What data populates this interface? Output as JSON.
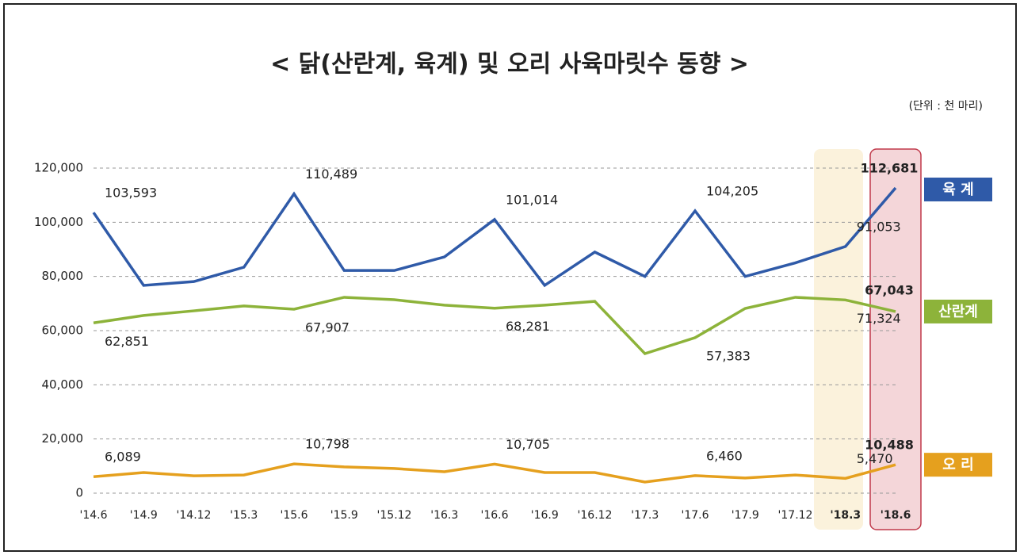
{
  "chart_data": {
    "type": "line",
    "title": "< 닭(산란계, 육계) 및 오리 사육마릿수 동향 >",
    "subtitle": "(단위 : 천 마리)",
    "categories": [
      "'14.6",
      "'14.9",
      "'14.12",
      "'15.3",
      "'15.6",
      "'15.9",
      "'15.12",
      "'16.3",
      "'16.6",
      "'16.9",
      "'16.12",
      "'17.3",
      "'17.6",
      "'17.9",
      "'17.12",
      "'18.3",
      "'18.6"
    ],
    "ylim": [
      0,
      120000
    ],
    "yticks": [
      0,
      {
        "value": 20000,
        "label": "20,000"
      },
      {
        "value": 40000,
        "label": "40,000"
      },
      {
        "value": 60000,
        "label": "60,000"
      },
      {
        "value": 80000,
        "label": "80,000"
      },
      {
        "value": 100000,
        "label": "100,000"
      },
      {
        "value": 120000,
        "label": "120,000"
      }
    ],
    "grid": true,
    "series": [
      {
        "name": "육 계",
        "color": "#2f5aa8",
        "values": [
          103593,
          76700,
          78100,
          83400,
          110489,
          82200,
          82200,
          87200,
          101014,
          76700,
          89000,
          80000,
          104205,
          80000,
          85000,
          91053,
          112681
        ],
        "value_labels": [
          "103,593",
          null,
          null,
          null,
          "110,489",
          null,
          null,
          null,
          "101,014",
          null,
          null,
          null,
          "104,205",
          null,
          null,
          "91,053",
          "112,681"
        ]
      },
      {
        "name": "산란계",
        "color": "#8db33a",
        "values": [
          62851,
          65600,
          67300,
          69100,
          67907,
          72300,
          71400,
          69400,
          68281,
          69400,
          70800,
          51500,
          57383,
          68200,
          72300,
          71324,
          67043
        ],
        "value_labels": [
          "62,851",
          null,
          null,
          null,
          "67,907",
          null,
          null,
          null,
          "68,281",
          null,
          null,
          null,
          "57,383",
          null,
          null,
          "71,324",
          "67,043"
        ]
      },
      {
        "name": "오 리",
        "color": "#e5a01e",
        "values": [
          6089,
          7600,
          6400,
          6700,
          10798,
          9700,
          9100,
          7900,
          10705,
          7600,
          7600,
          4100,
          6460,
          5600,
          6700,
          5470,
          10488
        ],
        "value_labels": [
          "6,089",
          null,
          null,
          null,
          "10,798",
          null,
          null,
          null,
          "10,705",
          null,
          null,
          null,
          "6,460",
          null,
          null,
          "5,470",
          "10,488"
        ]
      }
    ]
  }
}
